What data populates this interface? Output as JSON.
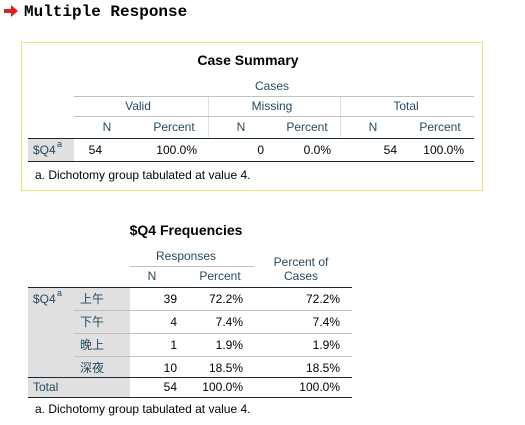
{
  "header": {
    "title": "Multiple Response"
  },
  "case_summary": {
    "title": "Case Summary",
    "group": "Cases",
    "subgroups": [
      "Valid",
      "Missing",
      "Total"
    ],
    "columns": [
      "N",
      "Percent",
      "N",
      "Percent",
      "N",
      "Percent"
    ],
    "rows": [
      {
        "label": "$Q4",
        "footnote_mark": "a",
        "cells": [
          "54",
          "100.0%",
          "0",
          "0.0%",
          "54",
          "100.0%"
        ]
      }
    ],
    "footnote": "a. Dichotomy group tabulated at value 4."
  },
  "frequencies": {
    "title": "$Q4 Frequencies",
    "group": "Responses",
    "columns": [
      "N",
      "Percent",
      "Percent of Cases"
    ],
    "variable": {
      "label": "$Q4",
      "footnote_mark": "a"
    },
    "rows": [
      {
        "label": "上午",
        "cells": [
          "39",
          "72.2%",
          "72.2%"
        ]
      },
      {
        "label": "下午",
        "cells": [
          "4",
          "7.4%",
          "7.4%"
        ]
      },
      {
        "label": "晚上",
        "cells": [
          "1",
          "1.9%",
          "1.9%"
        ]
      },
      {
        "label": "深夜",
        "cells": [
          "10",
          "18.5%",
          "18.5%"
        ]
      }
    ],
    "total": {
      "label": "Total",
      "cells": [
        "54",
        "100.0%",
        "100.0%"
      ]
    },
    "footnote": "a. Dichotomy group tabulated at value 4."
  }
}
